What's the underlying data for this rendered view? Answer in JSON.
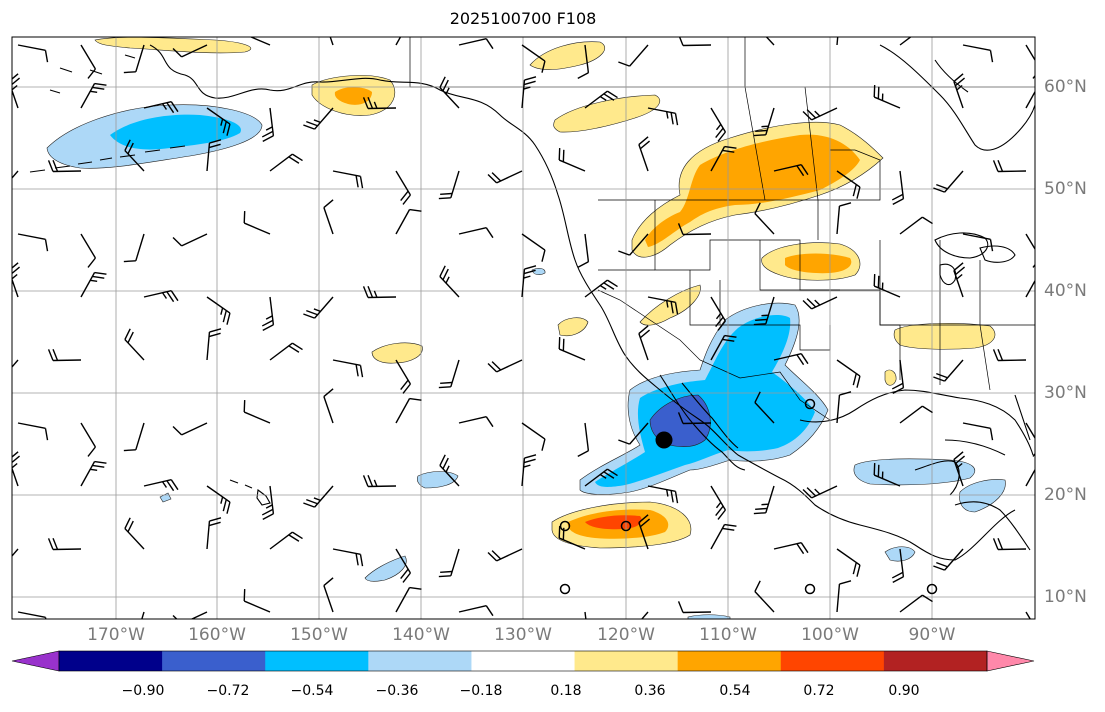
{
  "title": "2025100700 F108",
  "lon_labels": [
    "170°W",
    "160°W",
    "150°W",
    "140°W",
    "130°W",
    "120°W",
    "110°W",
    "100°W",
    "90°W"
  ],
  "lat_labels": [
    "60°N",
    "50°N",
    "40°N",
    "30°N",
    "20°N",
    "10°N"
  ],
  "colorbar": {
    "tick_labels": [
      "−0.90",
      "−0.72",
      "−0.54",
      "−0.36",
      "−0.18",
      "0.18",
      "0.36",
      "0.54",
      "0.72",
      "0.90"
    ],
    "colors": [
      "#9932cc",
      "#00008b",
      "#3a5fcd",
      "#00bfff",
      "#add8f7",
      "#ffffff",
      "#ffe98c",
      "#ffa500",
      "#ff4500",
      "#b22222",
      "#ff88aa"
    ]
  },
  "map_extent": {
    "lon_min": -180,
    "lon_max": -80,
    "lat_min": 8,
    "lat_max": 65
  },
  "anomaly_regions": [
    {
      "name": "alaska-gulf-negative",
      "level": "-0.36",
      "color": "#00bfff"
    },
    {
      "name": "canada-prairies-positive",
      "level": "0.36",
      "color": "#ffa500"
    },
    {
      "name": "mexico-baja-negative",
      "level": "-0.72",
      "color": "#3a5fcd"
    },
    {
      "name": "tropical-pacific-positive",
      "level": "0.54",
      "color": "#ff4500"
    }
  ]
}
